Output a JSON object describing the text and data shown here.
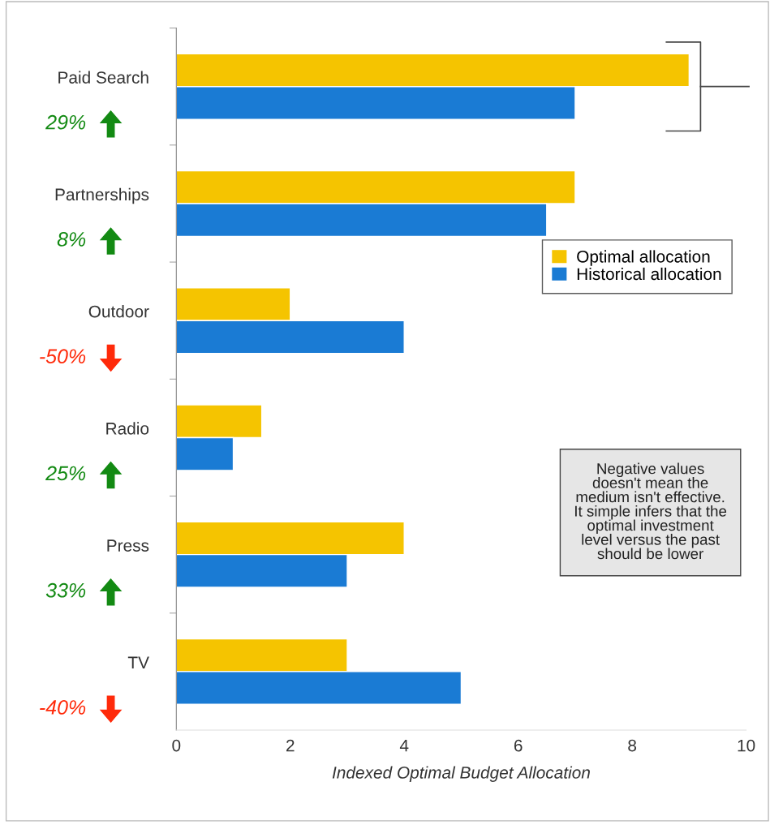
{
  "chart_data": {
    "type": "bar",
    "orientation": "horizontal",
    "xlabel": "Indexed Optimal Budget Allocation",
    "categories": [
      "Paid Search",
      "Partnerships",
      "Outdoor",
      "Radio",
      "Press",
      "TV"
    ],
    "series": [
      {
        "name": "Optimal allocation",
        "color": "#f5c400",
        "values": [
          9,
          7,
          2,
          1.5,
          4,
          3
        ]
      },
      {
        "name": "Historical allocation",
        "color": "#1a7bd4",
        "values": [
          7,
          6.5,
          4,
          1,
          3,
          5
        ]
      }
    ],
    "xlim": [
      0,
      10
    ],
    "xticks": [
      0,
      2,
      4,
      6,
      8,
      10
    ],
    "grid": false,
    "legend": "right",
    "annotations": [
      "29%",
      "8%",
      "-50%",
      "25%",
      "33%",
      "-40%",
      "Negative values\ndoesn't mean the\nmedium isn't effective.\nIt simple infers that the\noptimal investment\nlevel versus the past\nshould be lower"
    ]
  }
}
